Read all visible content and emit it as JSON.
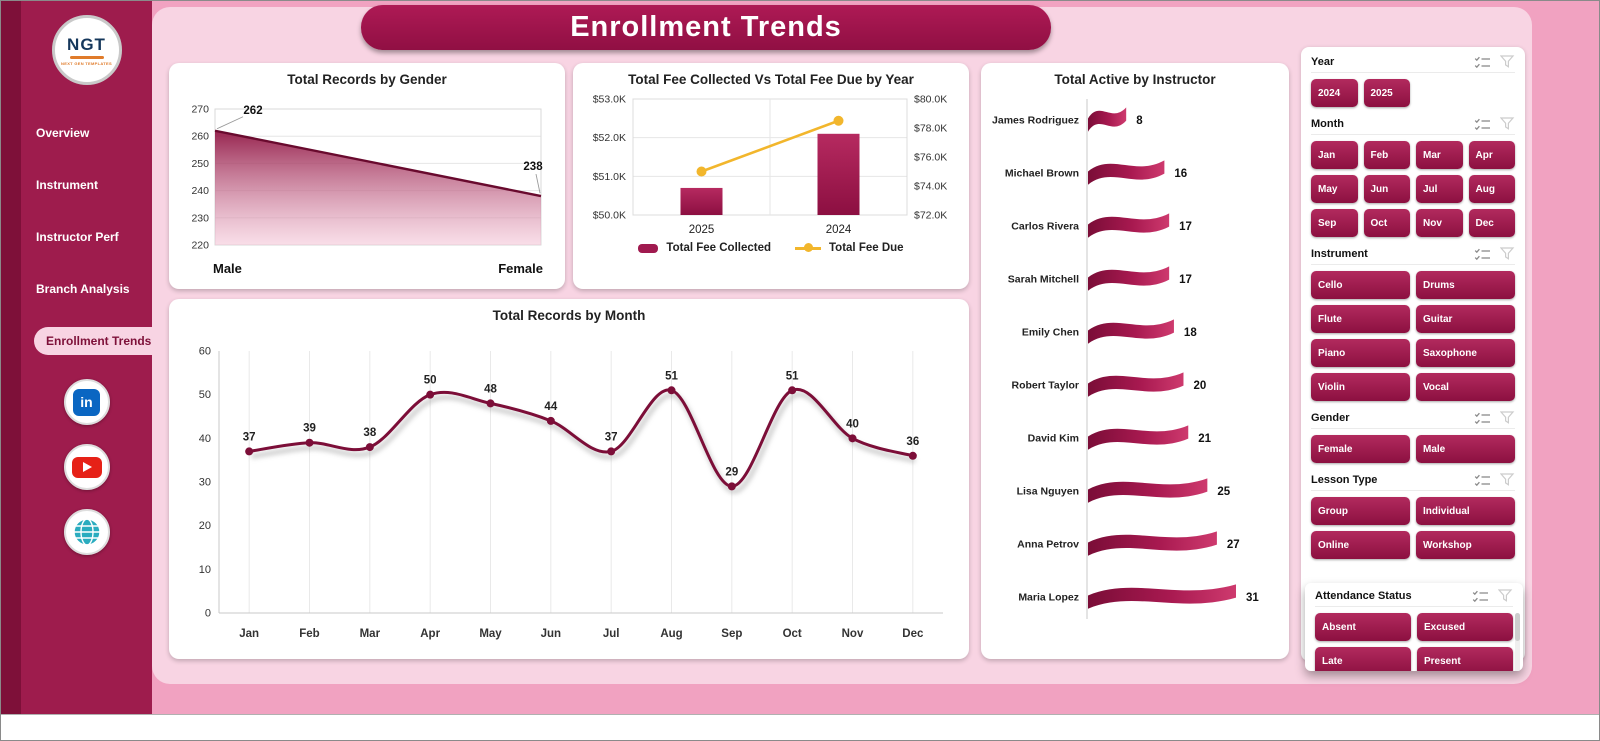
{
  "title": "Enrollment Trends",
  "sidebar": {
    "logo_text": "NGT",
    "logo_sub": "NEXT GEN TEMPLATES",
    "items": [
      {
        "label": "Overview",
        "active": false
      },
      {
        "label": "Instrument",
        "active": false
      },
      {
        "label": "Instructor Perf",
        "active": false
      },
      {
        "label": "Branch Analysis",
        "active": false
      },
      {
        "label": "Enrollment Trends",
        "active": true
      }
    ],
    "social": [
      {
        "name": "linkedin",
        "glyph": "in",
        "color": "#0A66C2"
      },
      {
        "name": "youtube",
        "color": "#E62117"
      },
      {
        "name": "website",
        "color": "#2AACBF"
      }
    ]
  },
  "chart_data": [
    {
      "type": "area",
      "title": "Total Records by Gender",
      "categories": [
        "Male",
        "Female"
      ],
      "values": [
        262,
        238
      ],
      "ylim": [
        220,
        270
      ],
      "yticks": [
        220,
        230,
        240,
        250,
        260,
        270
      ],
      "grid": true,
      "legend_position": "none"
    },
    {
      "type": "combo",
      "title": "Total Fee Collected Vs Total Fee Due by Year",
      "categories": [
        "2025",
        "2024"
      ],
      "series": [
        {
          "name": "Total Fee Collected",
          "kind": "bar",
          "axis": "left",
          "values": [
            50700,
            52100
          ],
          "color": "#A01A4F"
        },
        {
          "name": "Total Fee Due",
          "kind": "line",
          "axis": "right",
          "values": [
            75000,
            78500
          ],
          "color": "#F2B62C"
        }
      ],
      "left_axis": {
        "min": 50000,
        "max": 53000,
        "tick_values": [
          53000,
          52000,
          51000,
          50000
        ],
        "tick_labels": [
          "$53.0K",
          "$52.0K",
          "$51.0K",
          "$50.0K"
        ]
      },
      "right_axis": {
        "min": 72000,
        "max": 80000,
        "tick_values": [
          80000,
          78000,
          76000,
          74000,
          72000
        ],
        "tick_labels": [
          "$80.0K",
          "$78.0K",
          "$76.0K",
          "$74.0K",
          "$72.0K"
        ]
      },
      "legend_position": "bottom"
    },
    {
      "type": "bar",
      "style": "ribbon",
      "orientation": "horizontal",
      "title": "Total Active by Instructor",
      "categories": [
        "James Rodriguez",
        "Michael Brown",
        "Carlos Rivera",
        "Sarah Mitchell",
        "Emily Chen",
        "Robert Taylor",
        "David Kim",
        "Lisa Nguyen",
        "Anna Petrov",
        "Maria Lopez"
      ],
      "values": [
        8,
        16,
        17,
        17,
        18,
        20,
        21,
        25,
        27,
        31
      ],
      "legend_position": "none"
    },
    {
      "type": "line",
      "title": "Total Records by Month",
      "categories": [
        "Jan",
        "Feb",
        "Mar",
        "Apr",
        "May",
        "Jun",
        "Jul",
        "Aug",
        "Sep",
        "Oct",
        "Nov",
        "Dec"
      ],
      "values": [
        37,
        39,
        38,
        50,
        48,
        44,
        37,
        51,
        29,
        51,
        40,
        36
      ],
      "ylim": [
        0,
        60
      ],
      "yticks": [
        0,
        10,
        20,
        30,
        40,
        50,
        60
      ],
      "grid": "vertical",
      "legend_position": "none"
    }
  ],
  "filters": {
    "sections": [
      {
        "title": "Year",
        "cols": 4,
        "options": [
          "2024",
          "2025"
        ]
      },
      {
        "title": "Month",
        "cols": 4,
        "options": [
          "Jan",
          "Feb",
          "Mar",
          "Apr",
          "May",
          "Jun",
          "Jul",
          "Aug",
          "Sep",
          "Oct",
          "Nov",
          "Dec"
        ]
      },
      {
        "title": "Instrument",
        "cols": 2,
        "options": [
          "Cello",
          "Drums",
          "Flute",
          "Guitar",
          "Piano",
          "Saxophone",
          "Violin",
          "Vocal"
        ]
      },
      {
        "title": "Gender",
        "cols": 2,
        "options": [
          "Female",
          "Male"
        ]
      },
      {
        "title": "Lesson Type",
        "cols": 2,
        "options": [
          "Group",
          "Individual",
          "Online",
          "Workshop"
        ]
      },
      {
        "title": "Attendance Status",
        "cols": 2,
        "options": [
          "Absent",
          "Excused",
          "Late",
          "Present"
        ],
        "scrollbar": true,
        "placement": "attendance"
      }
    ]
  },
  "colors": {
    "sidebar": "#9E1C4D",
    "sidebar_dark": "#7E1039",
    "banner": "#A3134E",
    "background": "#F1A2C1",
    "content_background": "#F8D4E3",
    "crimson": "#8E1240",
    "yellow": "#F2B62C",
    "card": "#FFFFFF"
  }
}
